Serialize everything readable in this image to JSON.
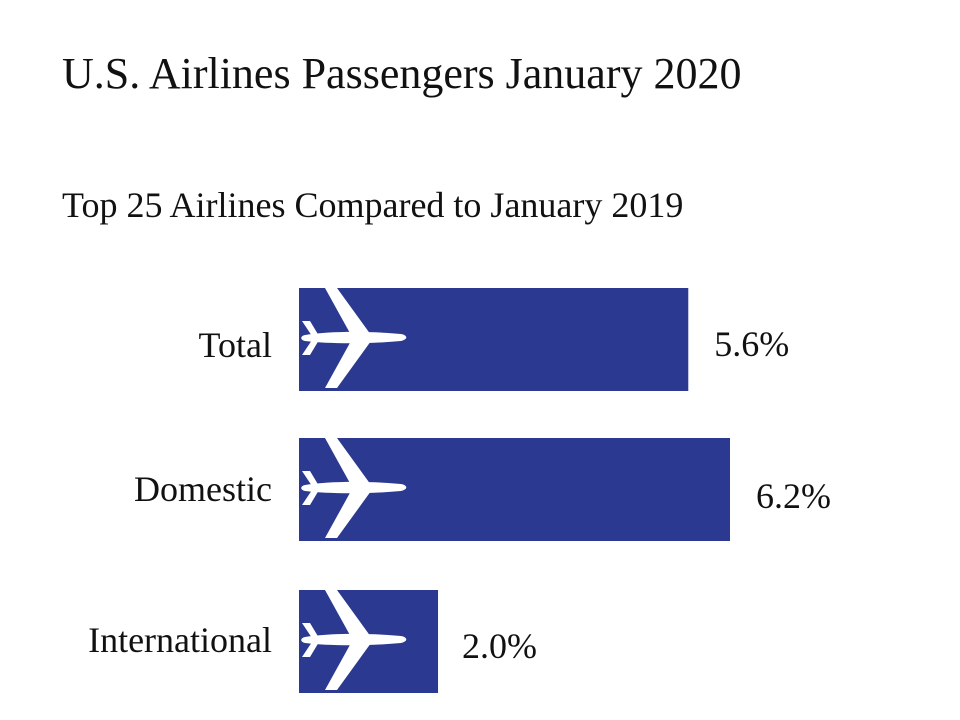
{
  "title": "U.S. Airlines Passengers January 2020",
  "subtitle": "Top 25 Airlines Compared to January 2019",
  "chart_data": {
    "type": "bar",
    "orientation": "horizontal",
    "title": "U.S. Airlines Passengers January 2020",
    "subtitle": "Top 25 Airlines Compared to January 2019",
    "categories": [
      "Total",
      "Domestic",
      "International"
    ],
    "values": [
      5.6,
      6.2,
      2.0
    ],
    "data_labels": [
      "5.6%",
      "6.2%",
      "2.0%"
    ],
    "unit": "%",
    "xlim": [
      0,
      6.2
    ],
    "grid": false,
    "legend": "none",
    "bar_color": "#2B3990",
    "icon": "airplane-icon"
  }
}
